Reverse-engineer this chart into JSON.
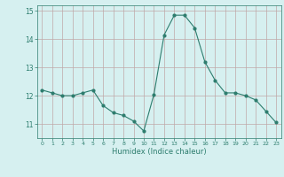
{
  "x": [
    0,
    1,
    2,
    3,
    4,
    5,
    6,
    7,
    8,
    9,
    10,
    11,
    12,
    13,
    14,
    15,
    16,
    17,
    18,
    19,
    20,
    21,
    22,
    23
  ],
  "y": [
    12.2,
    12.1,
    12.0,
    12.0,
    12.1,
    12.2,
    11.65,
    11.4,
    11.3,
    11.1,
    10.75,
    12.05,
    14.15,
    14.85,
    14.85,
    14.4,
    13.2,
    12.55,
    12.1,
    12.1,
    12.0,
    11.85,
    11.45,
    11.05
  ],
  "xlabel": "Humidex (Indice chaleur)",
  "ylabel": "",
  "ylim": [
    10.5,
    15.2
  ],
  "yticks": [
    11,
    12,
    13,
    14,
    15
  ],
  "xticks": [
    0,
    1,
    2,
    3,
    4,
    5,
    6,
    7,
    8,
    9,
    10,
    11,
    12,
    13,
    14,
    15,
    16,
    17,
    18,
    19,
    20,
    21,
    22,
    23
  ],
  "line_color": "#2d7d6e",
  "marker": "o",
  "marker_size": 2.0,
  "bg_color": "#d6f0f0",
  "grid_color": "#c0a8a8",
  "title": "",
  "figsize": [
    3.2,
    2.0
  ],
  "dpi": 100
}
